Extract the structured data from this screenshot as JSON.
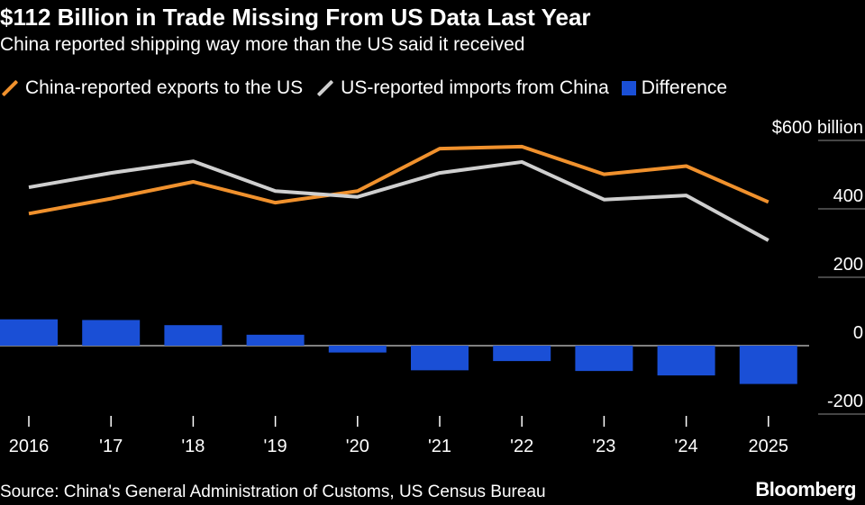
{
  "header": {
    "title": "$112 Billion in Trade Missing From US Data Last Year",
    "subtitle": "China reported shipping way more than the US said it received"
  },
  "legend": [
    {
      "label": "China-reported exports to the US",
      "kind": "line",
      "color": "#f0912d"
    },
    {
      "label": "US-reported imports from China",
      "kind": "line",
      "color": "#cfcfcf"
    },
    {
      "label": "Difference",
      "kind": "box",
      "color": "#1a4fd6"
    }
  ],
  "chart_data": {
    "type": "line+bar",
    "title": "$112 Billion in Trade Missing From US Data Last Year",
    "subtitle": "China reported shipping way more than the US said it received",
    "categories": [
      "2016",
      "'17",
      "'18",
      "'19",
      "'20",
      "'21",
      "'22",
      "'23",
      "'24",
      "2025"
    ],
    "series": [
      {
        "name": "China-reported exports to the US",
        "type": "line",
        "color": "#f0912d",
        "values": [
          386,
          430,
          479,
          418,
          452,
          576,
          582,
          501,
          525,
          420
        ]
      },
      {
        "name": "US-reported imports from China",
        "type": "line",
        "color": "#cfcfcf",
        "values": [
          463,
          505,
          539,
          452,
          435,
          505,
          537,
          427,
          439,
          308
        ]
      },
      {
        "name": "Difference",
        "type": "bar",
        "color": "#1a4fd6",
        "values": [
          77,
          75,
          60,
          32,
          -20,
          -72,
          -45,
          -74,
          -87,
          -112
        ]
      }
    ],
    "yaxis": {
      "unit_label": "$600 billion",
      "ticks": [
        600,
        400,
        200,
        0,
        -200
      ],
      "tick_labels": [
        "$600 billion",
        "400",
        "200",
        "0",
        "-200"
      ],
      "ylim": [
        -200,
        600
      ],
      "position": "right"
    },
    "xlabel": "",
    "ylabel": ""
  },
  "footer": {
    "source": "Source: China's General Administration of Customs, US Census Bureau",
    "brand": "Bloomberg"
  }
}
